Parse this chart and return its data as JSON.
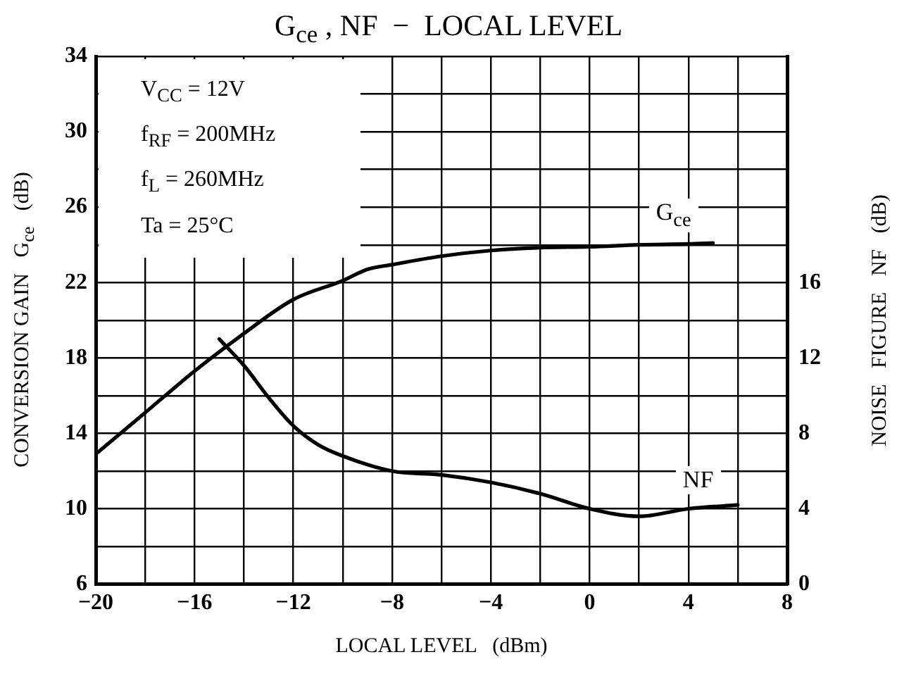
{
  "chart_data": {
    "type": "line",
    "title": "G$_{ce}$ , NF  −  LOCAL LEVEL",
    "xlabel": "LOCAL LEVEL   (dBm)",
    "ylabel": "CONVERSION GAIN   G$_{ce}$   (dB)",
    "y2label": "NOISE   FIGURE   NF   (dB)",
    "annotations": [
      "V$_{CC}$ = 12V",
      "f$_{RF}$ = 200MHz",
      "f$_{L}$ = 260MHz",
      "Ta = 25°C"
    ],
    "xlim": [
      -20,
      8
    ],
    "xticks": [
      {
        "value": -20,
        "label": "−20"
      },
      {
        "value": -18,
        "label": null
      },
      {
        "value": -16,
        "label": "−16"
      },
      {
        "value": -14,
        "label": null
      },
      {
        "value": -12,
        "label": "−12"
      },
      {
        "value": -10,
        "label": null
      },
      {
        "value": -8,
        "label": "−8"
      },
      {
        "value": -6,
        "label": null
      },
      {
        "value": -4,
        "label": "−4"
      },
      {
        "value": -2,
        "label": null
      },
      0,
      {
        "value": 2,
        "label": null
      },
      4,
      {
        "value": 6,
        "label": null
      },
      8
    ],
    "ylim": [
      6,
      34
    ],
    "yticks": [
      6,
      {
        "value": 8,
        "label": null
      },
      10,
      {
        "value": 12,
        "label": null
      },
      14,
      {
        "value": 16,
        "label": null
      },
      18,
      {
        "value": 20,
        "label": null
      },
      22,
      {
        "value": 24,
        "label": null
      },
      26,
      {
        "value": 28,
        "label": null
      },
      30,
      {
        "value": 32,
        "label": null
      },
      34
    ],
    "y2lim": [
      0,
      28
    ],
    "y2ticks": [
      0,
      4,
      8,
      12,
      16
    ],
    "grid": true,
    "legend": false,
    "marker": "none",
    "line_style": "solid",
    "series": [
      {
        "name": "G$_{ce}$",
        "color": "#000000",
        "x": [
          -20,
          -18,
          -16,
          -14,
          -12,
          -10,
          -9,
          -8,
          -6,
          -4,
          -2,
          0,
          2,
          4,
          5
        ],
        "values": [
          12.9,
          15.1,
          17.3,
          19.3,
          21.1,
          22.1,
          22.7,
          22.95,
          23.4,
          23.7,
          23.85,
          23.9,
          24,
          24.05,
          24.1
        ]
      },
      {
        "name": "NF",
        "axis": "y2",
        "color": "#000000",
        "x": [
          -15,
          -14,
          -13,
          -12,
          -11,
          -10,
          -8,
          -6,
          -4,
          -2,
          0,
          2,
          4,
          6
        ],
        "values": [
          13,
          11.6,
          9.9,
          8.4,
          7.4,
          6.8,
          6,
          5.8,
          5.4,
          4.8,
          4,
          3.6,
          4,
          4.2
        ]
      }
    ]
  }
}
